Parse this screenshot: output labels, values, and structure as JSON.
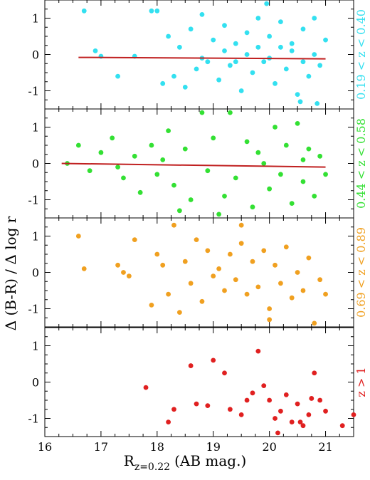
{
  "chart_data": {
    "type": "scatter",
    "ylabel": "Δ (B-R) / Δ log r",
    "xlabel": "R",
    "xlabel_sub": "z=0.22",
    "xlabel_suffix": "(AB mag.)",
    "xlim": [
      16,
      21.5
    ],
    "x_ticks": [
      "16",
      "17",
      "18",
      "19",
      "20",
      "21"
    ],
    "y_ticks": [
      "1",
      "0",
      "-1"
    ],
    "ylim": [
      -1.5,
      1.5
    ],
    "panels": [
      {
        "label": "0.19 < z < 0.40",
        "color": "#33e0f0",
        "fit": {
          "x": [
            16.6,
            21.0
          ],
          "y": [
            -0.08,
            -0.12
          ]
        },
        "points": [
          [
            16.7,
            1.2
          ],
          [
            16.9,
            0.1
          ],
          [
            17.0,
            -0.05
          ],
          [
            17.3,
            -0.6
          ],
          [
            17.6,
            -0.05
          ],
          [
            17.9,
            1.2
          ],
          [
            18.0,
            1.2
          ],
          [
            18.1,
            -0.8
          ],
          [
            18.2,
            0.5
          ],
          [
            18.3,
            -0.6
          ],
          [
            18.4,
            0.2
          ],
          [
            18.5,
            -0.9
          ],
          [
            18.6,
            0.7
          ],
          [
            18.7,
            -0.4
          ],
          [
            18.8,
            1.1
          ],
          [
            18.9,
            -0.2
          ],
          [
            19.0,
            0.4
          ],
          [
            19.1,
            -0.7
          ],
          [
            19.2,
            0.8
          ],
          [
            19.3,
            -0.3
          ],
          [
            19.4,
            0.3
          ],
          [
            19.5,
            -1.0
          ],
          [
            19.6,
            0.6
          ],
          [
            19.7,
            -0.5
          ],
          [
            19.8,
            1.0
          ],
          [
            19.9,
            -0.2
          ],
          [
            20.0,
            0.5
          ],
          [
            20.1,
            -0.8
          ],
          [
            20.2,
            0.9
          ],
          [
            20.3,
            -0.4
          ],
          [
            20.4,
            0.3
          ],
          [
            20.5,
            -1.1
          ],
          [
            20.6,
            0.7
          ],
          [
            20.7,
            -0.6
          ],
          [
            20.8,
            1.0
          ],
          [
            20.9,
            -0.3
          ],
          [
            21.0,
            0.4
          ],
          [
            19.95,
            1.4
          ],
          [
            20.55,
            -1.3
          ],
          [
            20.85,
            -1.35
          ],
          [
            18.8,
            -0.1
          ],
          [
            19.2,
            0.1
          ],
          [
            19.6,
            0.0
          ],
          [
            20.0,
            -0.1
          ],
          [
            20.4,
            0.1
          ],
          [
            20.8,
            0.0
          ],
          [
            19.4,
            -0.2
          ],
          [
            20.2,
            0.2
          ],
          [
            20.6,
            -0.2
          ],
          [
            19.8,
            0.2
          ]
        ]
      },
      {
        "label": "0.44 < z < 0.58",
        "color": "#33e033",
        "fit": {
          "x": [
            16.3,
            21.0
          ],
          "y": [
            0.0,
            -0.1
          ]
        },
        "points": [
          [
            16.4,
            0.0
          ],
          [
            16.6,
            0.5
          ],
          [
            16.8,
            -0.2
          ],
          [
            17.0,
            0.3
          ],
          [
            17.2,
            0.7
          ],
          [
            17.4,
            -0.4
          ],
          [
            17.6,
            0.2
          ],
          [
            17.7,
            -0.8
          ],
          [
            17.9,
            0.5
          ],
          [
            18.0,
            -0.3
          ],
          [
            18.2,
            0.9
          ],
          [
            18.3,
            -0.6
          ],
          [
            18.5,
            0.4
          ],
          [
            18.6,
            -1.0
          ],
          [
            18.8,
            1.4
          ],
          [
            18.9,
            -0.2
          ],
          [
            19.0,
            0.7
          ],
          [
            19.2,
            -0.9
          ],
          [
            19.3,
            1.4
          ],
          [
            19.4,
            -0.4
          ],
          [
            19.6,
            0.6
          ],
          [
            19.7,
            -1.2
          ],
          [
            19.8,
            0.3
          ],
          [
            20.0,
            -0.7
          ],
          [
            20.1,
            1.0
          ],
          [
            20.2,
            -0.3
          ],
          [
            20.3,
            0.5
          ],
          [
            20.4,
            -1.1
          ],
          [
            20.5,
            1.1
          ],
          [
            20.6,
            -0.5
          ],
          [
            20.7,
            0.4
          ],
          [
            20.8,
            -0.9
          ],
          [
            20.9,
            0.2
          ],
          [
            21.0,
            -0.3
          ],
          [
            18.4,
            -1.3
          ],
          [
            19.1,
            -1.4
          ],
          [
            17.3,
            -0.1
          ],
          [
            18.1,
            0.1
          ],
          [
            19.9,
            0.0
          ],
          [
            20.6,
            0.1
          ]
        ]
      },
      {
        "label": "0.69 < z < 0.89",
        "color": "#f0a020",
        "points": [
          [
            16.6,
            1.0
          ],
          [
            16.7,
            0.1
          ],
          [
            17.3,
            0.2
          ],
          [
            17.4,
            0.0
          ],
          [
            17.5,
            -0.1
          ],
          [
            17.6,
            0.9
          ],
          [
            17.9,
            -0.9
          ],
          [
            18.0,
            0.5
          ],
          [
            18.1,
            0.2
          ],
          [
            18.2,
            -0.6
          ],
          [
            18.3,
            1.3
          ],
          [
            18.4,
            -1.1
          ],
          [
            18.5,
            0.3
          ],
          [
            18.6,
            -0.3
          ],
          [
            18.7,
            0.9
          ],
          [
            18.8,
            -0.8
          ],
          [
            18.9,
            0.6
          ],
          [
            19.0,
            -0.1
          ],
          [
            19.1,
            0.1
          ],
          [
            19.2,
            -0.5
          ],
          [
            19.3,
            0.5
          ],
          [
            19.4,
            -0.2
          ],
          [
            19.5,
            0.8
          ],
          [
            19.6,
            -0.6
          ],
          [
            19.7,
            0.3
          ],
          [
            19.8,
            -0.4
          ],
          [
            19.9,
            0.6
          ],
          [
            20.0,
            -1.0
          ],
          [
            20.1,
            0.2
          ],
          [
            20.2,
            -0.3
          ],
          [
            20.3,
            0.7
          ],
          [
            20.4,
            -0.7
          ],
          [
            20.5,
            0.0
          ],
          [
            20.6,
            -0.5
          ],
          [
            20.7,
            0.4
          ],
          [
            20.8,
            -1.4
          ],
          [
            20.9,
            -0.2
          ],
          [
            21.0,
            -0.6
          ],
          [
            19.5,
            1.3
          ],
          [
            20.0,
            -1.3
          ]
        ]
      },
      {
        "label": "z > 1",
        "color": "#e02020",
        "points": [
          [
            17.8,
            -0.15
          ],
          [
            18.2,
            -1.1
          ],
          [
            18.3,
            -0.75
          ],
          [
            18.6,
            0.45
          ],
          [
            18.7,
            -0.6
          ],
          [
            18.9,
            -0.65
          ],
          [
            19.0,
            0.6
          ],
          [
            19.2,
            0.25
          ],
          [
            19.3,
            -0.75
          ],
          [
            19.5,
            -0.9
          ],
          [
            19.6,
            -0.5
          ],
          [
            19.7,
            -0.3
          ],
          [
            19.8,
            0.85
          ],
          [
            19.9,
            -0.1
          ],
          [
            20.0,
            -0.5
          ],
          [
            20.1,
            -1.0
          ],
          [
            20.2,
            -0.8
          ],
          [
            20.3,
            -0.35
          ],
          [
            20.4,
            -1.1
          ],
          [
            20.5,
            -0.6
          ],
          [
            20.6,
            -1.2
          ],
          [
            20.7,
            -0.9
          ],
          [
            20.8,
            0.25
          ],
          [
            20.9,
            -0.5
          ],
          [
            21.0,
            -0.8
          ],
          [
            21.3,
            -1.2
          ],
          [
            21.5,
            -0.9
          ],
          [
            20.15,
            -1.4
          ],
          [
            20.55,
            -1.1
          ],
          [
            20.75,
            -0.45
          ]
        ]
      }
    ]
  }
}
